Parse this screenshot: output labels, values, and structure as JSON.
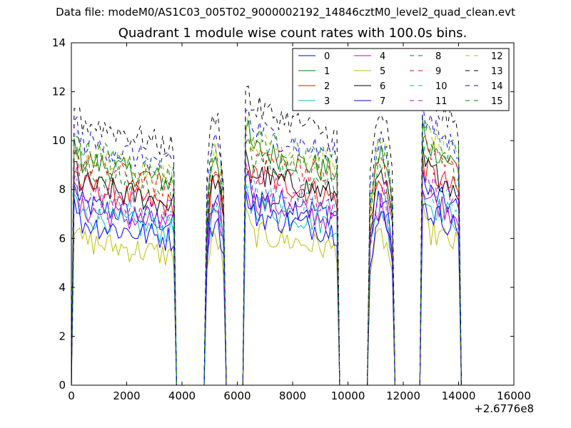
{
  "figure": {
    "suptitle": "Data file: modeM0/AS1C03_005T02_9000002192_14846cztM0_level2_quad_clean.evt",
    "title": "Quadrant 1 module wise count rates with 100.0s bins."
  },
  "chart_data": {
    "type": "line",
    "title": "Quadrant 1 module wise count rates with 100.0s bins.",
    "xlabel": "",
    "ylabel": "",
    "xlim": [
      0,
      16000
    ],
    "ylim": [
      0,
      14
    ],
    "x_offset_label": "+2.6776e8",
    "x_ticks": [
      0,
      2000,
      4000,
      6000,
      8000,
      10000,
      12000,
      14000,
      16000
    ],
    "y_ticks": [
      0,
      2,
      4,
      6,
      8,
      10,
      12,
      14
    ],
    "x_tick_labels": [
      "0",
      "2000",
      "4000",
      "6000",
      "8000",
      "10000",
      "12000",
      "14000",
      "16000"
    ],
    "y_tick_labels": [
      "0",
      "2",
      "4",
      "6",
      "8",
      "10",
      "12",
      "14"
    ],
    "grid": false,
    "legend_position": "top-right",
    "legend_columns": 4,
    "good_time_intervals": [
      [
        100,
        3700
      ],
      [
        4900,
        5500
      ],
      [
        6300,
        9600
      ],
      [
        10800,
        11600
      ],
      [
        12700,
        14000
      ]
    ],
    "series": [
      {
        "name": "0",
        "color": "#0000ff",
        "dash": "solid",
        "level": 6.9
      },
      {
        "name": "1",
        "color": "#008000",
        "dash": "solid",
        "level": 8.6
      },
      {
        "name": "2",
        "color": "#ff0000",
        "dash": "solid",
        "level": 7.6
      },
      {
        "name": "3",
        "color": "#00bfbf",
        "dash": "solid",
        "level": 6.5
      },
      {
        "name": "4",
        "color": "#bf00bf",
        "dash": "solid",
        "level": 6.7
      },
      {
        "name": "5",
        "color": "#bfbf00",
        "dash": "solid",
        "level": 5.5
      },
      {
        "name": "6",
        "color": "#000000",
        "dash": "solid",
        "level": 7.7
      },
      {
        "name": "7",
        "color": "#0000ff",
        "dash": "solid",
        "level": 6.2
      },
      {
        "name": "8",
        "color": "#008000",
        "dash": "dashed",
        "level": 8.2
      },
      {
        "name": "9",
        "color": "#ff0000",
        "dash": "dashed",
        "level": 8.4
      },
      {
        "name": "10",
        "color": "#00bfbf",
        "dash": "dashed",
        "level": 7.0
      },
      {
        "name": "11",
        "color": "#bf00bf",
        "dash": "dashed",
        "level": 7.3
      },
      {
        "name": "12",
        "color": "#bfbf00",
        "dash": "dashed",
        "level": 8.9
      },
      {
        "name": "13",
        "color": "#000000",
        "dash": "dashed",
        "level": 10.1
      },
      {
        "name": "14",
        "color": "#0000ff",
        "dash": "dashed",
        "level": 9.3
      },
      {
        "name": "15",
        "color": "#008000",
        "dash": "dashed",
        "level": 9.0
      }
    ]
  }
}
